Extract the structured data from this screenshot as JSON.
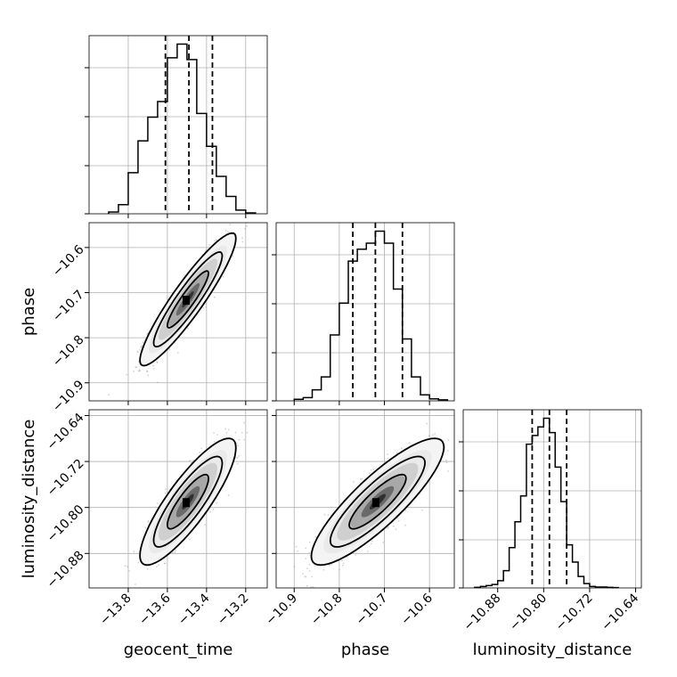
{
  "chart_data": {
    "type": "corner",
    "grid": true,
    "parameters": [
      {
        "name": "geocent_time",
        "median": -13.49,
        "quantile_16": -13.61,
        "quantile_84": -13.37,
        "range": [
          -14.0,
          -13.09
        ],
        "ticks": [
          "−13.8",
          "−13.6",
          "−13.4",
          "−13.2"
        ],
        "tick_values": [
          -13.8,
          -13.6,
          -13.4,
          -13.2
        ],
        "hist_bin_edges": [
          -13.9,
          -13.85,
          -13.8,
          -13.75,
          -13.7,
          -13.65,
          -13.6,
          -13.55,
          -13.5,
          -13.45,
          -13.4,
          -13.35,
          -13.3,
          -13.25,
          -13.2,
          -13.15
        ],
        "hist_density": [
          0.2,
          1.0,
          4.5,
          8.0,
          10.6,
          12.3,
          17.1,
          18.6,
          16.9,
          11.0,
          7.4,
          4.1,
          1.9,
          0.4,
          0.1
        ]
      },
      {
        "name": "phase",
        "median": -10.72,
        "quantile_16": -10.77,
        "quantile_84": -10.66,
        "range": [
          -10.94,
          -10.545
        ],
        "ticks": [
          "−10.9",
          "−10.8",
          "−10.7",
          "−10.6"
        ],
        "tick_values": [
          -10.9,
          -10.8,
          -10.7,
          -10.6
        ],
        "hist_bin_edges": [
          -10.9,
          -10.88,
          -10.86,
          -10.84,
          -10.82,
          -10.8,
          -10.78,
          -10.76,
          -10.74,
          -10.72,
          -10.7,
          -10.68,
          -10.66,
          -10.64,
          -10.62,
          -10.6,
          -10.58,
          -10.56
        ],
        "hist_density": [
          0.08,
          0.16,
          0.55,
          1.2,
          3.3,
          4.9,
          7.0,
          7.6,
          7.9,
          8.5,
          7.9,
          5.6,
          3.1,
          1.2,
          0.3,
          0.1,
          0.05
        ]
      },
      {
        "name": "luminosity_distance",
        "median": -10.79,
        "quantile_16": -10.82,
        "quantile_84": -10.76,
        "range": [
          -10.94,
          -10.63
        ],
        "ticks": [
          "−10.88",
          "−10.80",
          "−10.72",
          "−10.64"
        ],
        "tick_values": [
          -10.88,
          -10.8,
          -10.72,
          -10.64
        ],
        "hist_bin_edges": [
          -10.92,
          -10.91,
          -10.9,
          -10.89,
          -10.88,
          -10.87,
          -10.86,
          -10.85,
          -10.84,
          -10.83,
          -10.82,
          -10.81,
          -10.8,
          -10.79,
          -10.78,
          -10.77,
          -10.76,
          -10.75,
          -10.74,
          -10.73,
          -10.72,
          -10.71,
          -10.7,
          -10.69,
          -10.68,
          -10.67
        ],
        "hist_density": [
          0.02,
          0.05,
          0.08,
          0.12,
          0.25,
          0.6,
          1.4,
          2.3,
          3.2,
          5.0,
          5.3,
          5.6,
          5.9,
          5.4,
          4.2,
          3.0,
          1.5,
          0.9,
          0.4,
          0.15,
          0.05,
          0.03,
          0.03,
          0.02,
          0.01
        ]
      }
    ],
    "pairs": [
      {
        "x_param": "geocent_time",
        "y_param": "phase",
        "center": [
          -13.495,
          -10.715
        ],
        "sigma_x": 0.1,
        "sigma_y": 0.06,
        "correlation": 0.92
      },
      {
        "x_param": "geocent_time",
        "y_param": "luminosity_distance",
        "center": [
          -13.495,
          -10.79
        ],
        "sigma_x": 0.1,
        "sigma_y": 0.045,
        "correlation": 0.85
      },
      {
        "x_param": "phase",
        "y_param": "luminosity_distance",
        "center": [
          -10.715,
          -10.79
        ],
        "sigma_x": 0.06,
        "sigma_y": 0.045,
        "correlation": 0.86
      }
    ]
  },
  "colors": {
    "line": "#000000",
    "grid": "#b0b0b0",
    "points": "#808080"
  }
}
